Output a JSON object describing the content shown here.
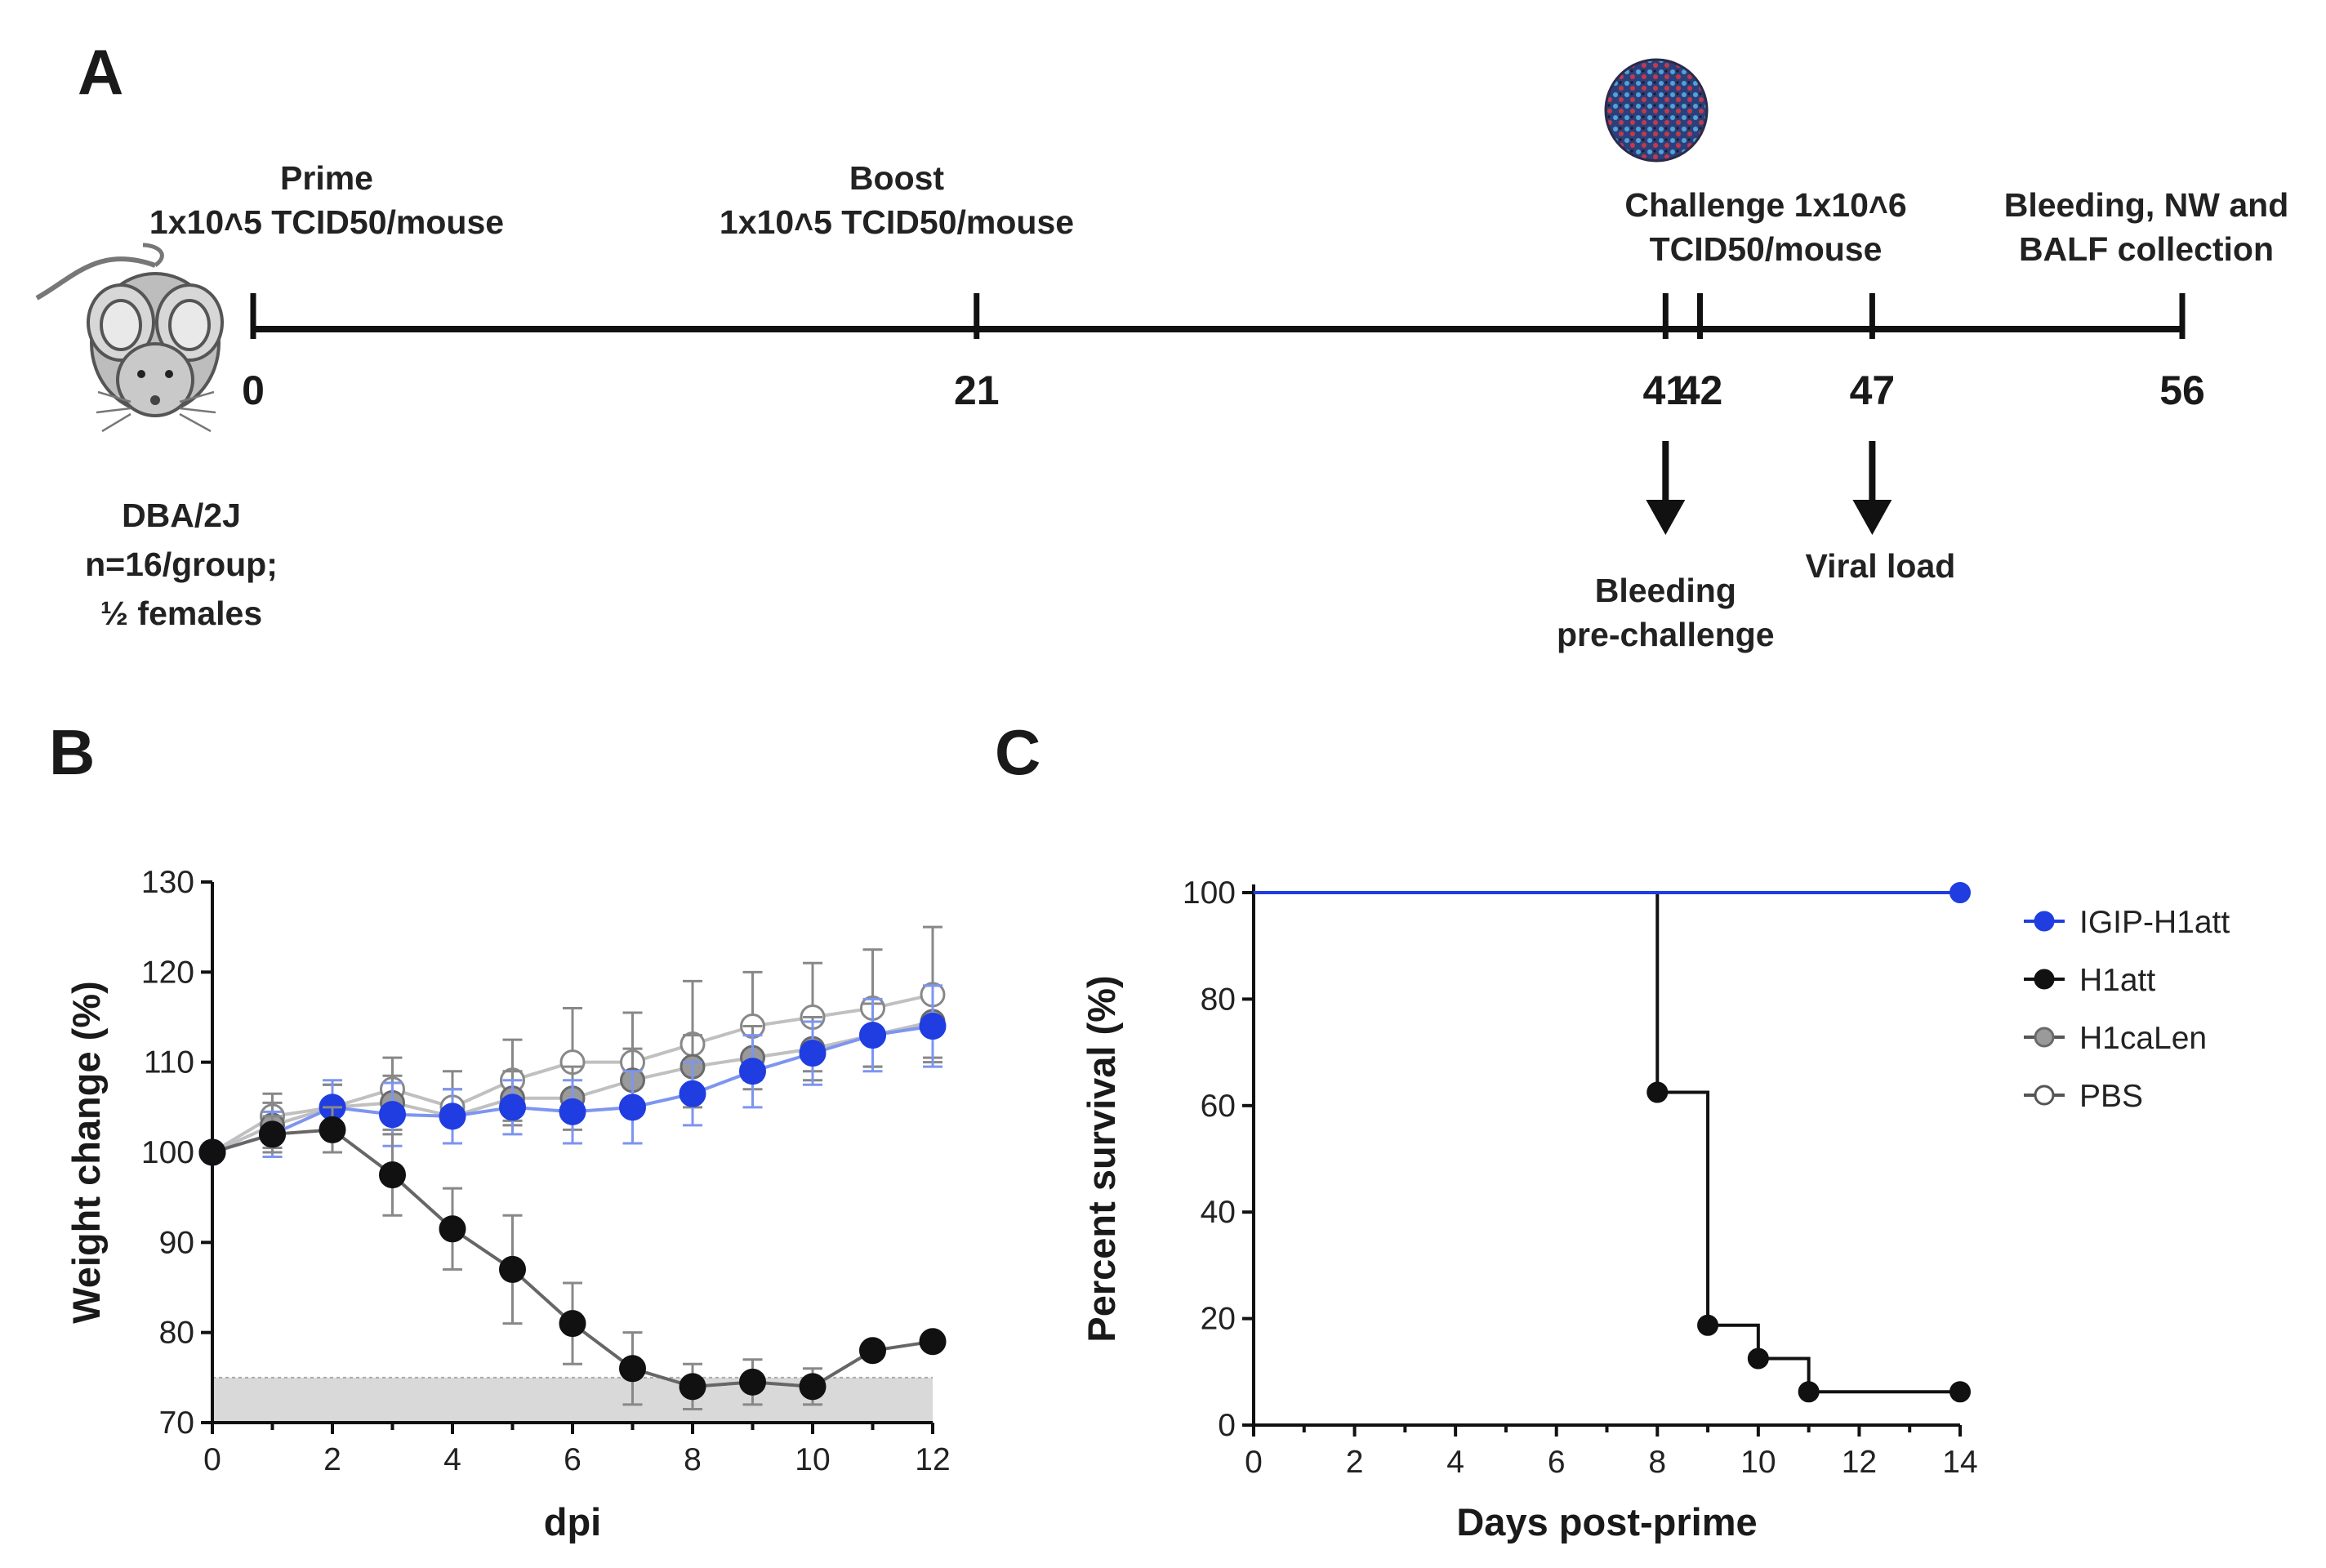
{
  "panels": {
    "a": "A",
    "b": "B",
    "c": "C"
  },
  "timeline": {
    "ticks": [
      {
        "day": 0,
        "label": "0"
      },
      {
        "day": 21,
        "label": "21"
      },
      {
        "day": 41,
        "label": "41"
      },
      {
        "day": 42,
        "label": "42"
      },
      {
        "day": 47,
        "label": "47"
      },
      {
        "day": 56,
        "label": "56"
      }
    ],
    "prime": [
      "Prime",
      "1x10˄5 TCID50/mouse"
    ],
    "boost": [
      "Boost",
      "1x10˄5 TCID50/mouse"
    ],
    "challenge": [
      "Challenge 1x10˄6",
      "TCID50/mouse"
    ],
    "collection": [
      "Bleeding, NW and",
      "BALF collection"
    ],
    "mouse_info": [
      "DBA/2J",
      "n=16/group;",
      "½ females"
    ],
    "bleeding": [
      "Bleeding",
      "pre-challenge"
    ],
    "viral_load": [
      "Viral load"
    ]
  },
  "colors": {
    "blue": "#1f3de0",
    "lightblue": "#7d95f0",
    "black": "#111111",
    "gray": "#888888",
    "lightgray": "#c0c0c0",
    "shade": "#d9d9d9"
  },
  "chart_data": [
    {
      "type": "line",
      "panel": "B",
      "xlabel": "dpi",
      "ylabel": "Weight change  (%)",
      "xlim": [
        0,
        12
      ],
      "ylim": [
        70,
        130
      ],
      "xticks": [
        0,
        2,
        4,
        6,
        8,
        10,
        12
      ],
      "yticks": [
        70,
        80,
        90,
        100,
        110,
        120,
        130
      ],
      "threshold_band": [
        70,
        75
      ],
      "x": [
        0,
        1,
        2,
        3,
        4,
        5,
        6,
        7,
        8,
        9,
        10,
        11,
        12
      ],
      "series": [
        {
          "name": "PBS",
          "values": [
            100,
            104,
            105,
            107,
            105,
            108,
            110,
            110,
            112,
            114,
            115,
            116,
            117.5
          ],
          "errors": [
            0,
            2.5,
            2.5,
            3.5,
            4,
            4.5,
            6,
            5.5,
            7,
            6,
            6,
            6.5,
            7.5
          ]
        },
        {
          "name": "H1caLen",
          "values": [
            100,
            103,
            105,
            105.5,
            104,
            106,
            106,
            108,
            109.5,
            110.5,
            111.5,
            113,
            114.5
          ],
          "errors": [
            0,
            2.5,
            2.5,
            3,
            3,
            3,
            3.5,
            3.5,
            3.5,
            3.5,
            3.5,
            3.5,
            4
          ]
        },
        {
          "name": "IGIP-H1att",
          "values": [
            100,
            102,
            105,
            104.2,
            104,
            105,
            104.5,
            105,
            106.5,
            109,
            111,
            113,
            114
          ],
          "errors": [
            0,
            2.5,
            3,
            3.5,
            3,
            3,
            3.5,
            4,
            3.5,
            4,
            3.5,
            4,
            4.5
          ]
        },
        {
          "name": "H1att",
          "values": [
            100,
            102,
            102.5,
            97.5,
            91.5,
            87,
            81,
            76,
            74,
            74.5,
            74,
            78,
            79
          ],
          "errors": [
            0,
            2,
            2.5,
            4.5,
            4.5,
            6,
            4.5,
            4,
            2.5,
            2.5,
            2,
            0,
            0
          ]
        }
      ]
    },
    {
      "type": "line",
      "panel": "C",
      "xlabel": "Days post-prime",
      "ylabel": "Percent survival (%)",
      "xlim": [
        0,
        14
      ],
      "ylim": [
        0,
        100
      ],
      "xticks": [
        0,
        2,
        4,
        6,
        8,
        10,
        12,
        14
      ],
      "yticks": [
        0,
        20,
        40,
        60,
        80,
        100
      ],
      "series": [
        {
          "name": "IGIP-H1att",
          "steps": [
            [
              0,
              100
            ],
            [
              14,
              100
            ]
          ],
          "markers": [
            [
              14,
              100
            ]
          ]
        },
        {
          "name": "H1att",
          "steps": [
            [
              0,
              100
            ],
            [
              8,
              100
            ],
            [
              8,
              62.5
            ],
            [
              9,
              62.5
            ],
            [
              9,
              18.75
            ],
            [
              10,
              18.75
            ],
            [
              10,
              12.5
            ],
            [
              11,
              12.5
            ],
            [
              11,
              6.25
            ],
            [
              14,
              6.25
            ]
          ],
          "markers": [
            [
              8,
              62.5
            ],
            [
              9,
              18.75
            ],
            [
              10,
              12.5
            ],
            [
              11,
              6.25
            ],
            [
              14,
              6.25
            ]
          ]
        }
      ],
      "legend": [
        "IGIP-H1att",
        "H1att",
        "H1caLen",
        "PBS"
      ]
    }
  ]
}
